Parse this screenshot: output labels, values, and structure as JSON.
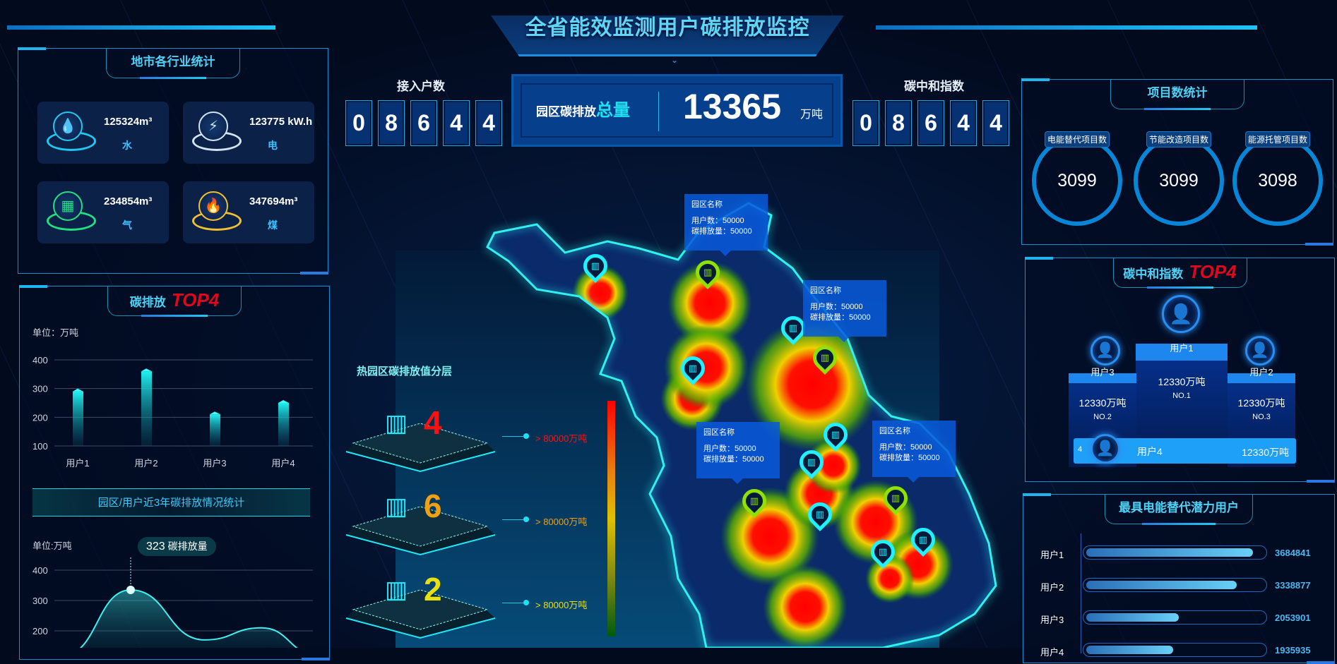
{
  "header": {
    "title": "全省能效监测用户碳排放监控"
  },
  "industry": {
    "title": "地市各行业统计",
    "cards": [
      {
        "value": "125324m³",
        "label": "水",
        "icon": "water-drop-icon",
        "color": "#20c8f0"
      },
      {
        "value": "123775 kW.h",
        "label": "电",
        "icon": "lightning-icon",
        "color": "#cfe4ef"
      },
      {
        "value": "234854m³",
        "label": "气",
        "icon": "gas-icon",
        "color": "#20e080"
      },
      {
        "value": "347694m³",
        "label": "煤",
        "icon": "flame-icon",
        "color": "#f0c030"
      }
    ]
  },
  "emission_top4": {
    "title": "碳排放",
    "badge": "TOP4",
    "unit": "单位：万吨"
  },
  "trend": {
    "banner": "园区/用户近3年碳排放情况统计",
    "unit": "单位:万吨",
    "tooltip_value": "323",
    "tooltip_label": "碳排放量"
  },
  "chart_data": [
    {
      "type": "bar",
      "categories": [
        "用户1",
        "用户2",
        "用户3",
        "用户4"
      ],
      "values": [
        290,
        360,
        210,
        250
      ],
      "ylim": [
        100,
        400
      ],
      "yticks": [
        100,
        200,
        300,
        400
      ],
      "ylabel": "单位：万吨",
      "grid": true
    },
    {
      "type": "area",
      "values": [
        120,
        335,
        170,
        210,
        120
      ],
      "ylim": [
        100,
        400
      ],
      "yticks": [
        200,
        300,
        400
      ],
      "ylabel": "单位:万吨",
      "grid": true,
      "highlight": {
        "value": 323,
        "label": "碳排放量"
      }
    }
  ],
  "counters": {
    "left_label": "接入户数",
    "left_digits": [
      "0",
      "8",
      "6",
      "4",
      "4"
    ],
    "right_label": "碳中和指数",
    "right_digits": [
      "0",
      "8",
      "6",
      "4",
      "4"
    ],
    "total_label": "园区碳排放",
    "total_label_em": "总量",
    "total_value": "13365",
    "total_unit": "万吨"
  },
  "legend": {
    "title": "热园区碳排放值分层",
    "layers": [
      {
        "count": "4",
        "label": "> 80000万吨",
        "color": "#ff1010"
      },
      {
        "count": "6",
        "label": "> 80000万吨",
        "color": "#f0a010"
      },
      {
        "count": "2",
        "label": "> 80000万吨",
        "color": "#e8e010"
      }
    ]
  },
  "map": {
    "tooltips": [
      {
        "name": "园区名称",
        "users": "用户数：50000",
        "emission": "碳排放量：50000"
      },
      {
        "name": "园区名称",
        "users": "用户数：50000",
        "emission": "碳排放量：50000"
      },
      {
        "name": "园区名称",
        "users": "用户数：50000",
        "emission": "碳排放量：50000"
      },
      {
        "name": "园区名称",
        "users": "用户数：50000",
        "emission": "碳排放量：50000"
      }
    ]
  },
  "projects": {
    "title": "项目数统计",
    "items": [
      {
        "label": "电能替代项目数",
        "value": "3099"
      },
      {
        "label": "节能改造项目数",
        "value": "3099"
      },
      {
        "label": "能源托管项目数",
        "value": "3098"
      }
    ]
  },
  "neutral_top4": {
    "title": "碳中和指数",
    "badge": "TOP4",
    "podium": [
      {
        "name": "用户1",
        "value": "12330万吨",
        "rank": "NO.1"
      },
      {
        "name": "用户3",
        "value": "12330万吨",
        "rank": "NO.2"
      },
      {
        "name": "用户2",
        "value": "12330万吨",
        "rank": "NO.3"
      }
    ],
    "fourth": {
      "rank": "4",
      "name": "用户4",
      "value": "12330万吨"
    }
  },
  "potential": {
    "title": "最具电能替代潜力用户",
    "rows": [
      {
        "label": "用户1",
        "value": "3684841",
        "fraction": 0.94
      },
      {
        "label": "用户2",
        "value": "3338877",
        "fraction": 0.85
      },
      {
        "label": "用户3",
        "value": "2053901",
        "fraction": 0.52
      },
      {
        "label": "用户4",
        "value": "1935935",
        "fraction": 0.49
      }
    ]
  }
}
